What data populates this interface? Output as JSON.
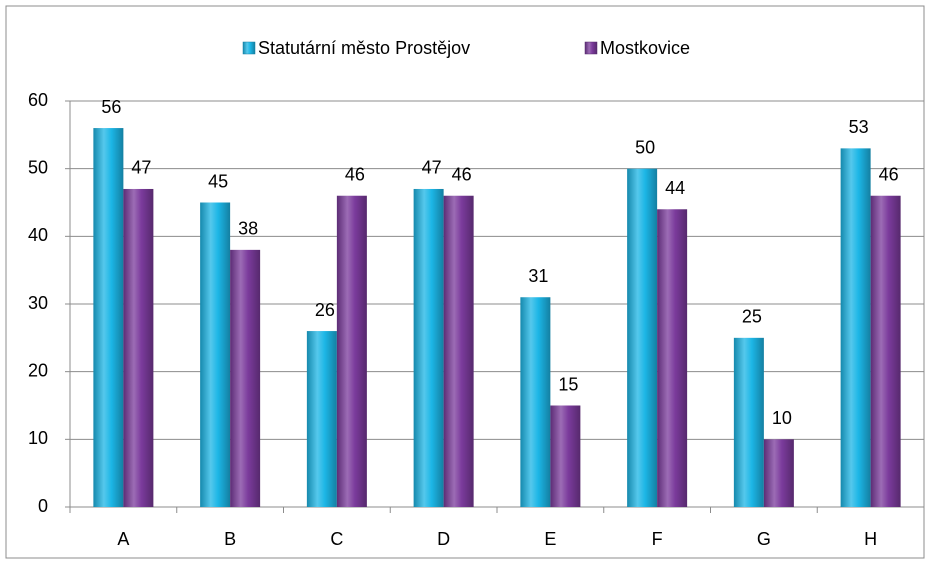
{
  "chart_data": {
    "type": "bar",
    "categories": [
      "A",
      "B",
      "C",
      "D",
      "E",
      "F",
      "G",
      "H"
    ],
    "series": [
      {
        "name": "Statutární město Prostějov",
        "color": "#1cb6e6",
        "values": [
          56,
          45,
          26,
          47,
          31,
          50,
          25,
          53
        ]
      },
      {
        "name": "Mostkovice",
        "color": "#7b3b9c",
        "values": [
          47,
          38,
          46,
          46,
          15,
          44,
          10,
          46
        ]
      }
    ],
    "ylim": [
      0,
      60
    ],
    "yticks": [
      0,
      10,
      20,
      30,
      40,
      50,
      60
    ],
    "grid": true,
    "legend": "top"
  }
}
